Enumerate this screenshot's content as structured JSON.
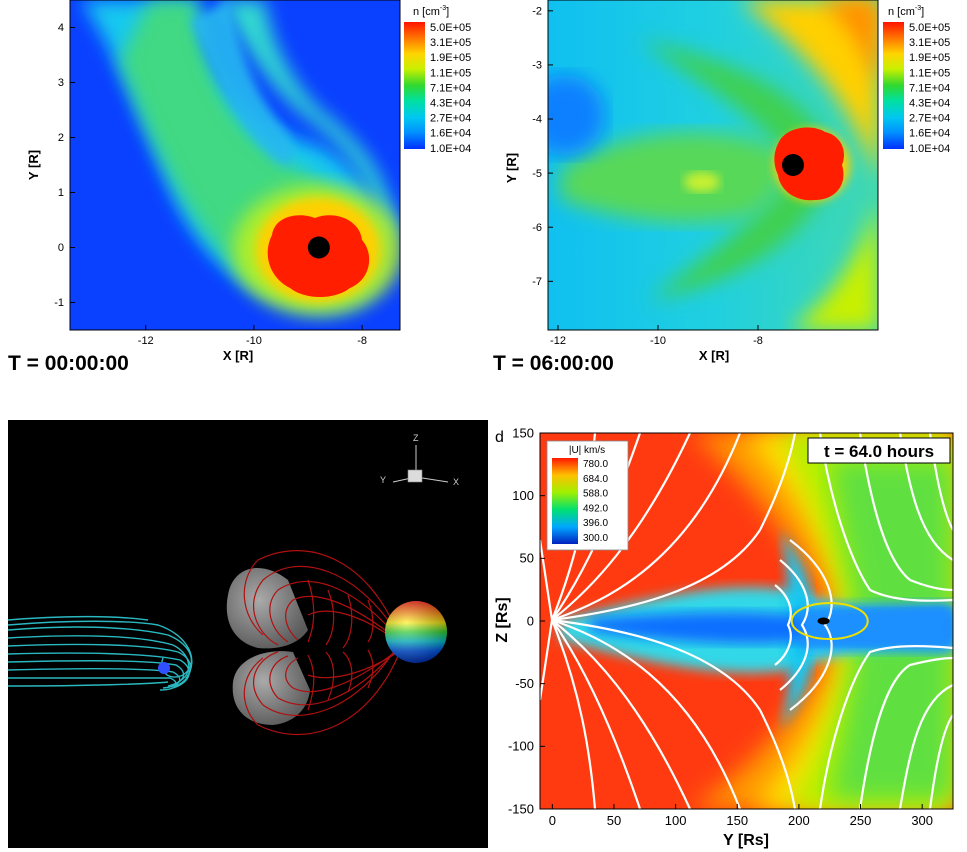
{
  "chart_data": [
    {
      "type": "heatmap",
      "panel": "a",
      "xlabel": "X [R]",
      "ylabel": "Y [R]",
      "xlim": [
        -13.4,
        -7.3
      ],
      "ylim": [
        -1.5,
        4.5
      ],
      "xticks": [
        "-12",
        "-10",
        "-8"
      ],
      "yticks": [
        "-1",
        "0",
        "1",
        "2",
        "3",
        "4"
      ],
      "caption": "T = 00:00:00",
      "colorbar": {
        "title": "n [cm",
        "unit_exp": "-3",
        "title_close": "]",
        "labels": [
          "5.0E+05",
          "3.1E+05",
          "1.9E+05",
          "1.1E+05",
          "7.1E+04",
          "4.3E+04",
          "2.7E+04",
          "1.6E+04",
          "1.0E+04"
        ]
      },
      "body_center": [
        -8.8,
        0.0
      ]
    },
    {
      "type": "heatmap",
      "panel": "b",
      "xlabel": "X [R]",
      "ylabel": "Y [R]",
      "xlim": [
        -12.2,
        -5.6
      ],
      "ylim": [
        -7.9,
        -1.8
      ],
      "xticks": [
        "-12",
        "-10",
        "-8"
      ],
      "yticks": [
        "-2",
        "-3",
        "-4",
        "-5",
        "-6",
        "-7"
      ],
      "caption": "T = 06:00:00",
      "colorbar": {
        "title": "n [cm",
        "unit_exp": "-3",
        "title_close": "]",
        "labels": [
          "5.0E+05",
          "3.1E+05",
          "1.9E+05",
          "1.1E+05",
          "7.1E+04",
          "4.3E+04",
          "2.7E+04",
          "1.6E+04",
          "1.0E+04"
        ]
      },
      "body_center": [
        -7.3,
        -4.85
      ]
    },
    {
      "type": "other",
      "panel": "c",
      "axes_triad": {
        "z": "Z",
        "y": "Y",
        "x": "X"
      }
    },
    {
      "type": "heatmap",
      "panel": "d",
      "panel_letter": "d",
      "xlabel": "Y [Rs]",
      "ylabel": "Z [Rs]",
      "xlim": [
        -10,
        325
      ],
      "ylim": [
        -150,
        150
      ],
      "xticks": [
        0,
        50,
        100,
        150,
        200,
        250,
        300
      ],
      "yticks": [
        150,
        100,
        50,
        0,
        -50,
        -100,
        -150
      ],
      "annotation": "t = 64.0 hours",
      "colorbar": {
        "title": "|U| km/s",
        "labels": [
          "780.0",
          "684.0",
          "588.0",
          "492.0",
          "396.0",
          "300.0"
        ]
      },
      "ellipse_center": [
        225,
        0
      ],
      "object_center": [
        220,
        0
      ]
    }
  ]
}
